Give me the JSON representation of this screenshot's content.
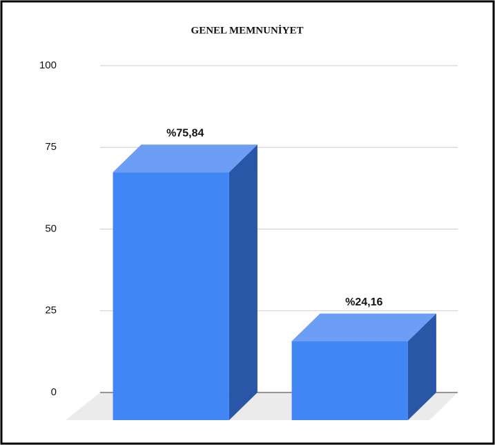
{
  "chart_data": {
    "type": "bar3d",
    "title": "GENEL MEMNUNİYET",
    "categories": [
      null,
      null
    ],
    "values": [
      75.84,
      24.16
    ],
    "value_labels": [
      "%75,84",
      "%24,16"
    ],
    "color": "#4285f4",
    "ylim": [
      0,
      100
    ],
    "yticks": [
      0,
      25,
      50,
      75,
      100
    ],
    "grid": true
  }
}
